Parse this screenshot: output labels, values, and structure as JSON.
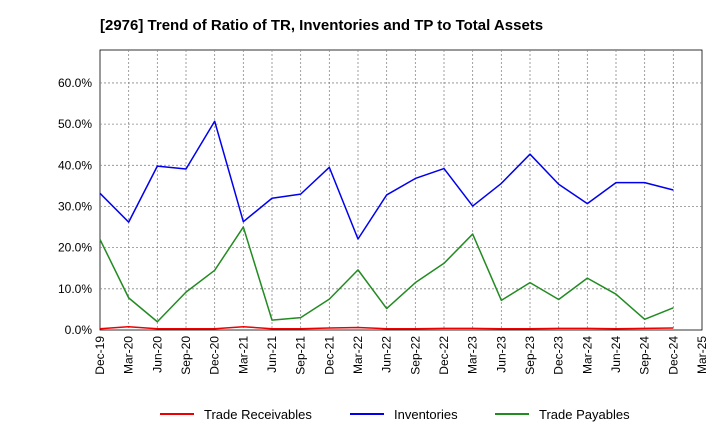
{
  "chart_data": {
    "type": "line",
    "title": "[2976]  Trend of Ratio of TR, Inventories and TP to Total Assets",
    "xlabel": "",
    "ylabel": "",
    "x_tick_labels": [
      "Dec-19",
      "Mar-20",
      "Jun-20",
      "Sep-20",
      "Dec-20",
      "Mar-21",
      "Jun-21",
      "Sep-21",
      "Dec-21",
      "Mar-22",
      "Jun-22",
      "Sep-22",
      "Dec-22",
      "Mar-23",
      "Jun-23",
      "Sep-23",
      "Dec-23",
      "Mar-24",
      "Jun-24",
      "Sep-24",
      "Dec-24",
      "Mar-25"
    ],
    "y_ticks": [
      0,
      10,
      20,
      30,
      40,
      50,
      60
    ],
    "y_tick_labels": [
      "0.0%",
      "10.0%",
      "20.0%",
      "30.0%",
      "40.0%",
      "50.0%",
      "60.0%"
    ],
    "ylim": [
      0,
      68
    ],
    "grid": true,
    "legend_position": "bottom",
    "x": [
      "Dec-19",
      "Mar-20",
      "Jun-20",
      "Sep-20",
      "Dec-20",
      "Mar-21",
      "Jun-21",
      "Sep-21",
      "Dec-21",
      "Mar-22",
      "Jun-22",
      "Sep-22",
      "Dec-22",
      "Mar-23",
      "Jun-23",
      "Sep-23",
      "Dec-23",
      "Mar-24",
      "Jun-24",
      "Sep-24",
      "Dec-24"
    ],
    "series": [
      {
        "name": "Trade Receivables",
        "color": "#ee0000",
        "values": [
          0.3,
          0.8,
          0.3,
          0.3,
          0.3,
          0.8,
          0.3,
          0.3,
          0.5,
          0.6,
          0.3,
          0.3,
          0.4,
          0.4,
          0.3,
          0.3,
          0.4,
          0.4,
          0.3,
          0.4,
          0.5
        ]
      },
      {
        "name": "Inventories",
        "color": "#0000ee",
        "values": [
          33.2,
          26.2,
          39.8,
          39.1,
          50.7,
          26.3,
          32.0,
          33.0,
          39.5,
          22.1,
          32.8,
          36.8,
          39.2,
          30.1,
          35.6,
          42.7,
          35.4,
          30.7,
          35.8,
          35.8,
          34.0
        ]
      },
      {
        "name": "Trade Payables",
        "color": "#228b22",
        "values": [
          22.0,
          7.8,
          2.0,
          9.2,
          14.5,
          25.0,
          2.4,
          3.0,
          7.5,
          14.6,
          5.2,
          11.5,
          16.2,
          23.3,
          7.2,
          11.5,
          7.4,
          12.6,
          8.7,
          2.6,
          5.4
        ]
      }
    ]
  }
}
